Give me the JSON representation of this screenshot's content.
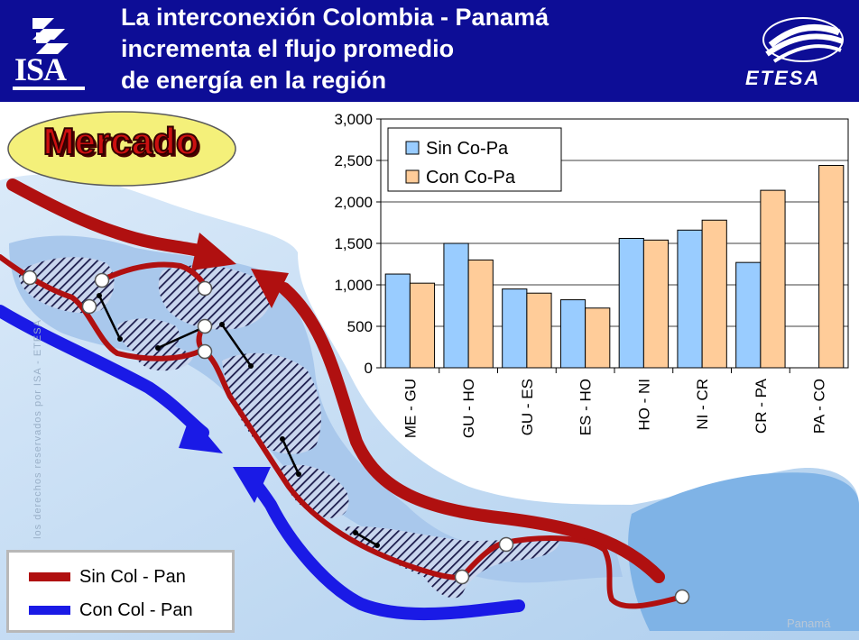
{
  "header": {
    "title_lines": [
      "La interconexión  Colombia - Panamá",
      "incrementa el flujo promedio",
      "de energía en la región"
    ],
    "left_logo": "ISA",
    "right_logo": "ETESA",
    "background_color": "#0d0d96"
  },
  "badge": {
    "label": "Mercado",
    "fill": "#f4f07a"
  },
  "side_note": "los derechos reservados por ISA - ETESA",
  "bottom_note": "Panamá",
  "map_legend": {
    "items": [
      {
        "label": "Sin Col - Pan",
        "color": "#b01010"
      },
      {
        "label": "Con Col - Pan",
        "color": "#1a1ae6"
      }
    ]
  },
  "chart_data": {
    "type": "bar",
    "categories": [
      "ME - GU",
      "GU - HO",
      "GU - ES",
      "ES - HO",
      "HO - NI",
      "NI - CR",
      "CR - PA",
      "PA - CO"
    ],
    "series": [
      {
        "name": "Sin Co-Pa",
        "color": "#99ccff",
        "values": [
          1130,
          1500,
          950,
          820,
          1560,
          1660,
          1270,
          null
        ]
      },
      {
        "name": "Con Co-Pa",
        "color": "#ffcc99",
        "values": [
          1020,
          1300,
          900,
          720,
          1540,
          1780,
          2140,
          2440
        ]
      }
    ],
    "title": "",
    "xlabel": "",
    "ylabel": "",
    "ylim": [
      0,
      3000
    ],
    "yticks": [
      0,
      500,
      1000,
      1500,
      2000,
      2500,
      3000
    ],
    "ytick_labels": [
      "0",
      "500",
      "1,000",
      "1,500",
      "2,000",
      "2,500",
      "3,000"
    ],
    "grid": true,
    "legend_position": "top-left"
  }
}
